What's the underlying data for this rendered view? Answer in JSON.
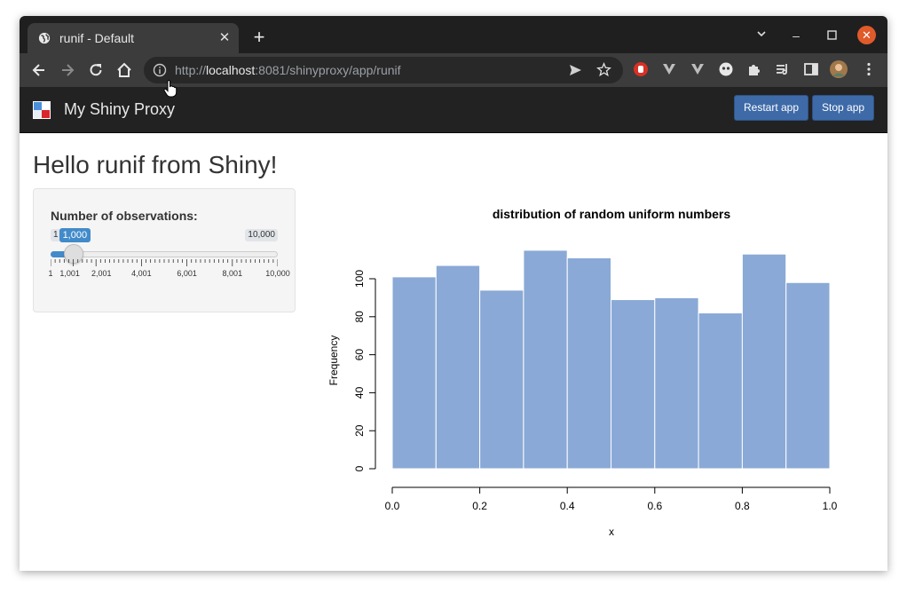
{
  "browser": {
    "tab_title": "runif - Default",
    "url_prefix": "http://",
    "url_host": "localhost",
    "url_rest": ":8081/shinyproxy/app/runif"
  },
  "navbar": {
    "brand": "My Shiny Proxy",
    "restart_label": "Restart app",
    "stop_label": "Stop app"
  },
  "page": {
    "title": "Hello runif from Shiny!"
  },
  "slider": {
    "label": "Number of observations:",
    "min": 1,
    "max": 10000,
    "value": 1000,
    "min_label": "1",
    "max_label": "10,000",
    "value_label": "1,000",
    "tick_labels": [
      "1",
      "1,001",
      "2,001",
      "4,001",
      "6,001",
      "8,001",
      "10,000"
    ],
    "tick_values": [
      1,
      1001,
      2001,
      4001,
      6001,
      8001,
      10000
    ]
  },
  "chart_data": {
    "type": "bar",
    "title": "distribution of random uniform numbers",
    "xlabel": "x",
    "ylabel": "Frequency",
    "bin_edges": [
      0.0,
      0.1,
      0.2,
      0.3,
      0.4,
      0.5,
      0.6,
      0.7,
      0.8,
      0.9,
      1.0
    ],
    "values": [
      101,
      107,
      94,
      115,
      111,
      89,
      90,
      82,
      113,
      98
    ],
    "xlim": [
      0.0,
      1.0
    ],
    "ylim": [
      0,
      115
    ],
    "x_ticks": [
      0.0,
      0.2,
      0.4,
      0.6,
      0.8,
      1.0
    ],
    "x_tick_labels": [
      "0.0",
      "0.2",
      "0.4",
      "0.6",
      "0.8",
      "1.0"
    ],
    "y_ticks": [
      0,
      20,
      40,
      60,
      80,
      100
    ],
    "y_tick_labels": [
      "0",
      "20",
      "40",
      "60",
      "80",
      "100"
    ],
    "bar_color": "#8aa9d6",
    "grid": false
  }
}
